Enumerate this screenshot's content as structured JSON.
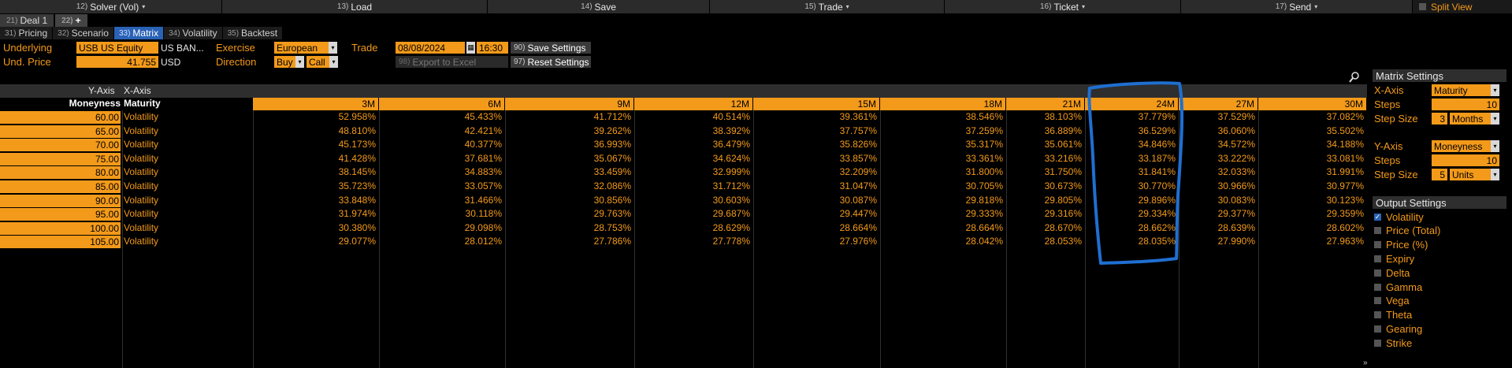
{
  "toolbar": {
    "buttons": [
      {
        "num": "12)",
        "label": "Solver (Vol)",
        "caret": "▾"
      },
      {
        "num": "13)",
        "label": "Load",
        "caret": ""
      },
      {
        "num": "14)",
        "label": "Save",
        "caret": ""
      },
      {
        "num": "15)",
        "label": "Trade",
        "caret": "▾"
      },
      {
        "num": "16)",
        "label": "Ticket",
        "caret": "▾"
      },
      {
        "num": "17)",
        "label": "Send",
        "caret": "▾"
      }
    ],
    "split_view": "Split View"
  },
  "deal_tabs": [
    {
      "num": "21)",
      "label": "Deal 1"
    },
    {
      "num": "22)",
      "label": "+"
    }
  ],
  "view_tabs": [
    {
      "num": "31)",
      "label": "Pricing",
      "active": false
    },
    {
      "num": "32)",
      "label": "Scenario",
      "active": false
    },
    {
      "num": "33)",
      "label": "Matrix",
      "active": true
    },
    {
      "num": "34)",
      "label": "Volatility",
      "active": false
    },
    {
      "num": "35)",
      "label": "Backtest",
      "active": false
    }
  ],
  "params": {
    "underlying_label": "Underlying",
    "underlying_value": "USB US Equity",
    "underlying_name": "US BAN...",
    "und_price_label": "Und. Price",
    "und_price_value": "41.755",
    "currency": "USD",
    "exercise_label": "Exercise",
    "exercise_value": "European",
    "direction_label": "Direction",
    "direction_buy": "Buy",
    "direction_call": "Call",
    "trade_label": "Trade",
    "trade_date": "08/08/2024",
    "trade_time": "16:30",
    "save_settings": {
      "num": "90)",
      "label": "Save Settings"
    },
    "export_excel": {
      "num": "98)",
      "label": "Export to Excel"
    },
    "reset_settings": {
      "num": "97)",
      "label": "Reset Settings"
    }
  },
  "matrix": {
    "y_axis_label": "Y-Axis",
    "x_axis_label": "X-Axis",
    "y_header": "Moneyness",
    "x_header": "Maturity",
    "columns": [
      "3M",
      "6M",
      "9M",
      "12M",
      "15M",
      "18M",
      "21M",
      "24M",
      "27M",
      "30M"
    ],
    "rows": [
      {
        "y": "60.00",
        "type": "Volatility",
        "values": [
          "52.958%",
          "45.433%",
          "41.712%",
          "40.514%",
          "39.361%",
          "38.546%",
          "38.103%",
          "37.779%",
          "37.529%",
          "37.082%"
        ]
      },
      {
        "y": "65.00",
        "type": "Volatility",
        "values": [
          "48.810%",
          "42.421%",
          "39.262%",
          "38.392%",
          "37.757%",
          "37.259%",
          "36.889%",
          "36.529%",
          "36.060%",
          "35.502%"
        ]
      },
      {
        "y": "70.00",
        "type": "Volatility",
        "values": [
          "45.173%",
          "40.377%",
          "36.993%",
          "36.479%",
          "35.826%",
          "35.317%",
          "35.061%",
          "34.846%",
          "34.572%",
          "34.188%"
        ]
      },
      {
        "y": "75.00",
        "type": "Volatility",
        "values": [
          "41.428%",
          "37.681%",
          "35.067%",
          "34.624%",
          "33.857%",
          "33.361%",
          "33.216%",
          "33.187%",
          "33.222%",
          "33.081%"
        ]
      },
      {
        "y": "80.00",
        "type": "Volatility",
        "values": [
          "38.145%",
          "34.883%",
          "33.459%",
          "32.999%",
          "32.209%",
          "31.800%",
          "31.750%",
          "31.841%",
          "32.033%",
          "31.991%"
        ]
      },
      {
        "y": "85.00",
        "type": "Volatility",
        "values": [
          "35.723%",
          "33.057%",
          "32.086%",
          "31.712%",
          "31.047%",
          "30.705%",
          "30.673%",
          "30.770%",
          "30.966%",
          "30.977%"
        ]
      },
      {
        "y": "90.00",
        "type": "Volatility",
        "values": [
          "33.848%",
          "31.466%",
          "30.856%",
          "30.603%",
          "30.087%",
          "29.818%",
          "29.805%",
          "29.896%",
          "30.083%",
          "30.123%"
        ]
      },
      {
        "y": "95.00",
        "type": "Volatility",
        "values": [
          "31.974%",
          "30.118%",
          "29.763%",
          "29.687%",
          "29.447%",
          "29.333%",
          "29.316%",
          "29.334%",
          "29.377%",
          "29.359%"
        ]
      },
      {
        "y": "100.00",
        "type": "Volatility",
        "values": [
          "30.380%",
          "29.098%",
          "28.753%",
          "28.629%",
          "28.664%",
          "28.664%",
          "28.670%",
          "28.662%",
          "28.639%",
          "28.602%"
        ]
      },
      {
        "y": "105.00",
        "type": "Volatility",
        "values": [
          "29.077%",
          "28.012%",
          "27.786%",
          "27.778%",
          "27.976%",
          "28.042%",
          "28.053%",
          "28.035%",
          "27.990%",
          "27.963%"
        ]
      }
    ]
  },
  "matrix_settings": {
    "title": "Matrix Settings",
    "x_axis_label": "X-Axis",
    "x_axis_value": "Maturity",
    "x_steps_label": "Steps",
    "x_steps_value": "10",
    "x_step_size_label": "Step Size",
    "x_step_size_value": "3",
    "x_step_unit": "Months",
    "y_axis_label": "Y-Axis",
    "y_axis_value": "Moneyness",
    "y_steps_label": "Steps",
    "y_steps_value": "10",
    "y_step_size_label": "Step Size",
    "y_step_size_value": "5",
    "y_step_unit": "Units"
  },
  "output_settings": {
    "title": "Output Settings",
    "options": [
      {
        "label": "Volatility",
        "checked": true
      },
      {
        "label": "Price (Total)",
        "checked": false
      },
      {
        "label": "Price (%)",
        "checked": false
      },
      {
        "label": "Expiry",
        "checked": false
      },
      {
        "label": "Delta",
        "checked": false
      },
      {
        "label": "Gamma",
        "checked": false
      },
      {
        "label": "Vega",
        "checked": false
      },
      {
        "label": "Theta",
        "checked": false
      },
      {
        "label": "Gearing",
        "checked": false
      },
      {
        "label": "Strike",
        "checked": false
      }
    ]
  },
  "colors": {
    "accent": "#f39a1a",
    "active_tab": "#2a62b5",
    "annotation": "#1f6fd1"
  },
  "icons": {
    "magnify": "magnifier-icon",
    "checkbox": "checkbox-icon",
    "dropdown": "chevron-down-icon"
  }
}
